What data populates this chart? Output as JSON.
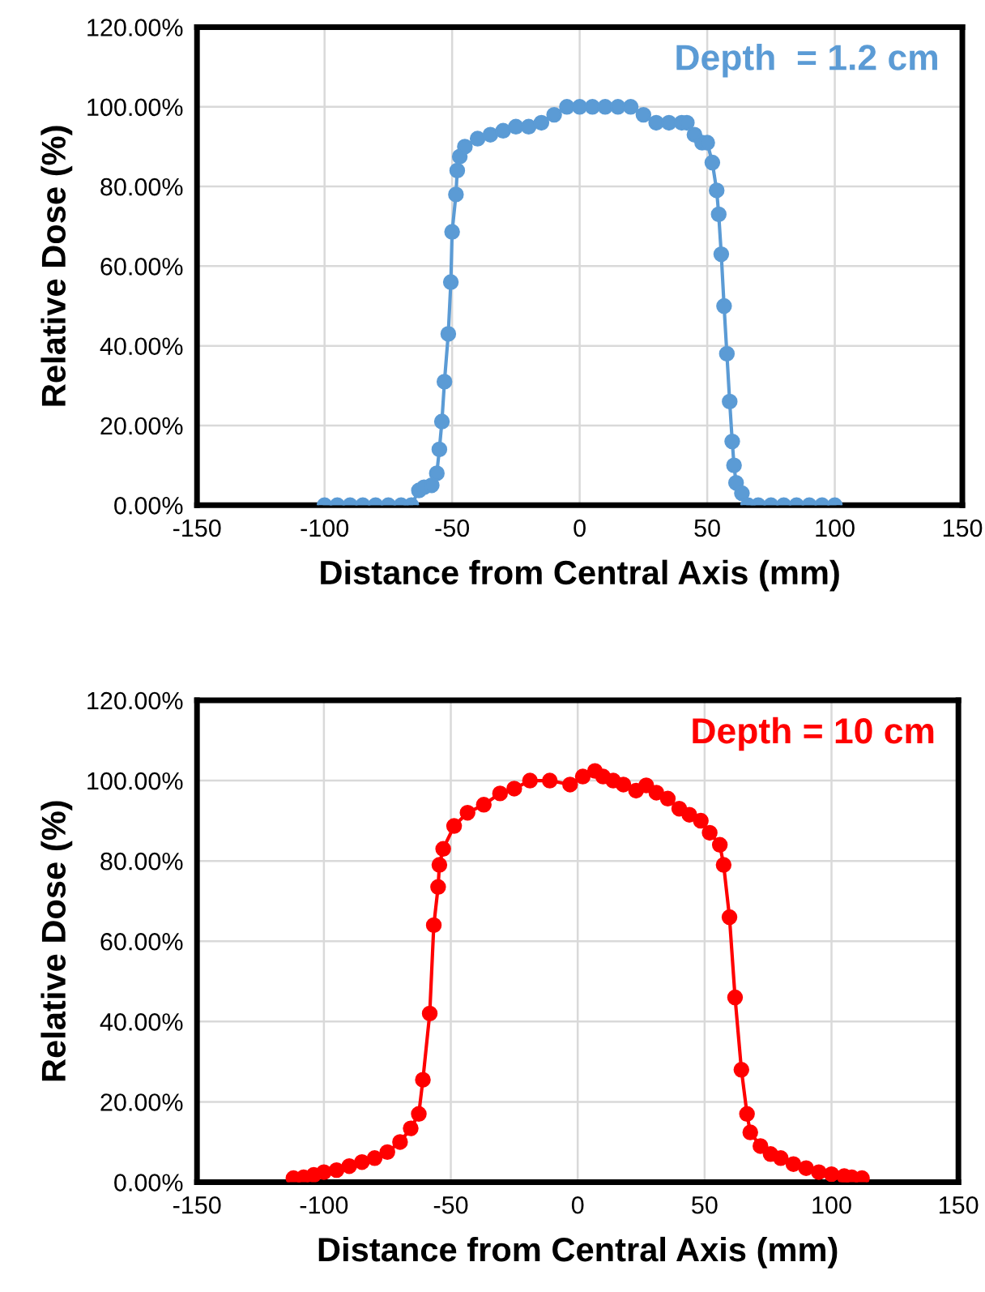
{
  "chart_data": [
    {
      "type": "line",
      "xlabel": "Distance from Central Axis (mm)",
      "ylabel": "Relative Dose (%)",
      "annotations": [
        "Depth  = 1.2 cm"
      ],
      "marker": "circle",
      "line_style": "solid",
      "grid": true,
      "xlim": [
        -150,
        150
      ],
      "xticks": [
        -150,
        -100,
        -50,
        0,
        50,
        100,
        150
      ],
      "ylim": [
        0,
        120
      ],
      "yticks": [
        {
          "value": 0,
          "label": "0.00%"
        },
        {
          "value": 20,
          "label": "20.00%"
        },
        {
          "value": 40,
          "label": "40.00%"
        },
        {
          "value": 60,
          "label": "60.00%"
        },
        {
          "value": 80,
          "label": "80.00%"
        },
        {
          "value": 100,
          "label": "100.00%"
        },
        {
          "value": 120,
          "label": "120.00%"
        }
      ],
      "series": [
        {
          "color": "#5b9bd5",
          "x": [
            -100,
            -95,
            -90,
            -85,
            -80,
            -75,
            -70,
            -66,
            -63,
            -61,
            -58,
            -56,
            -55,
            -54,
            -53,
            -51.5,
            -50.5,
            -50,
            -48.5,
            -48,
            -47,
            -45,
            -40,
            -35,
            -30,
            -25,
            -20,
            -15,
            -10,
            -5,
            0,
            5,
            10,
            15,
            20,
            25,
            30,
            35,
            40,
            42,
            45,
            48,
            50,
            52,
            53.7,
            54.5,
            55.5,
            56.6,
            57.7,
            58.8,
            59.8,
            60.5,
            61.3,
            63.6,
            66,
            70,
            75,
            80,
            85,
            90,
            95,
            100
          ],
          "values": [
            0,
            0,
            0,
            0,
            0,
            0,
            0,
            0,
            3.7,
            4.5,
            5,
            8,
            14,
            21,
            31,
            43,
            56,
            68.6,
            78,
            84,
            87.5,
            90,
            92,
            93,
            94,
            95,
            95,
            96,
            98,
            100,
            100,
            100,
            100,
            100,
            100,
            98,
            96,
            96,
            96,
            96,
            93,
            91,
            91,
            86,
            79,
            73,
            63,
            50,
            38,
            26,
            16,
            10,
            5.6,
            3,
            0,
            0,
            0,
            0,
            0,
            0,
            0,
            0
          ]
        }
      ]
    },
    {
      "type": "line",
      "xlabel": "Distance from Central Axis (mm)",
      "ylabel": "Relative Dose (%)",
      "annotations": [
        "Depth = 10 cm"
      ],
      "marker": "circle",
      "line_style": "solid",
      "grid": true,
      "xlim": [
        -150,
        150
      ],
      "xticks": [
        -150,
        -100,
        -50,
        0,
        50,
        100,
        150
      ],
      "ylim": [
        0,
        120
      ],
      "yticks": [
        {
          "value": 0,
          "label": "0.00%"
        },
        {
          "value": 20,
          "label": "20.00%"
        },
        {
          "value": 40,
          "label": "40.00%"
        },
        {
          "value": 60,
          "label": "60.00%"
        },
        {
          "value": 80,
          "label": "80.00%"
        },
        {
          "value": 100,
          "label": "100.00%"
        },
        {
          "value": 120,
          "label": "120.00%"
        }
      ],
      "series": [
        {
          "color": "#ff0000",
          "x": [
            -112,
            -108,
            -104,
            -100,
            -95,
            -90,
            -85,
            -80,
            -75,
            -70,
            -65.8,
            -62.6,
            -61,
            -58.3,
            -56.7,
            -55,
            -54.5,
            -53,
            -48.7,
            -43.4,
            -37,
            -30.6,
            -25,
            -18.8,
            -11,
            -3,
            2,
            6.8,
            10,
            14,
            18,
            23,
            27,
            31,
            35.5,
            40,
            44,
            48.5,
            52,
            56,
            57.5,
            59.8,
            62,
            64.5,
            66.7,
            68,
            72,
            76,
            80,
            85,
            90,
            95,
            100,
            105,
            108,
            112
          ],
          "values": [
            1,
            1.2,
            1.8,
            2.5,
            3,
            4,
            5,
            6,
            7.5,
            10,
            13.4,
            17,
            25.5,
            42,
            64,
            73.5,
            79,
            83,
            88.7,
            92,
            94,
            96.8,
            98,
            100,
            100,
            99,
            101,
            102.4,
            101,
            100,
            99,
            97.5,
            98.8,
            97,
            95.5,
            93,
            91.5,
            90,
            87,
            84,
            79,
            66,
            46,
            28,
            17,
            12.4,
            9,
            7,
            6,
            4.5,
            3.5,
            2.5,
            2,
            1.5,
            1.2,
            1
          ]
        }
      ]
    }
  ]
}
